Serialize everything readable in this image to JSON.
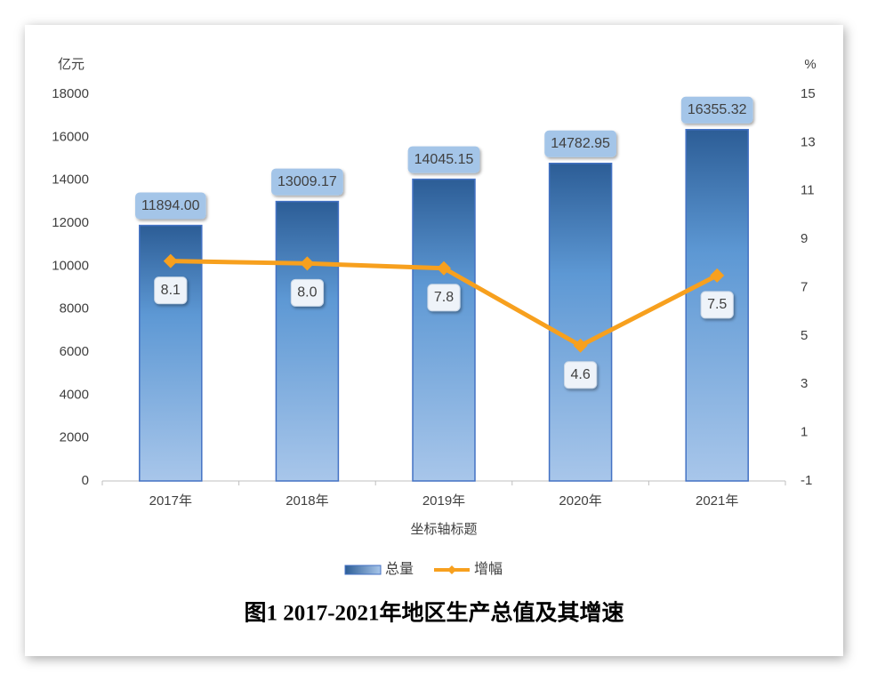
{
  "chart_data": {
    "type": "combo",
    "title": "图1 2017-2021年地区生产总值及其增速",
    "y_unit": "亿元",
    "y2_unit": "%",
    "x_label": "坐标轴标题",
    "categories": [
      "2017年",
      "2018年",
      "2019年",
      "2020年",
      "2021年"
    ],
    "series": [
      {
        "name": "总量",
        "type": "bar",
        "color": "#4472c4",
        "axis": "y",
        "values": [
          11894.0,
          13009.17,
          14045.15,
          14782.95,
          16355.32
        ],
        "value_labels": [
          "11894.00",
          "13009.17",
          "14045.15",
          "14782.95",
          "16355.32"
        ]
      },
      {
        "name": "增幅",
        "type": "line",
        "color": "#f7a01e",
        "axis": "y2",
        "values": [
          8.1,
          8.0,
          7.8,
          4.6,
          7.5
        ],
        "value_labels": [
          "8.1",
          "8.0",
          "7.8",
          "4.6",
          "7.5"
        ]
      }
    ],
    "ylim": [
      0,
      18000
    ],
    "yticks": [
      0,
      2000,
      4000,
      6000,
      8000,
      10000,
      12000,
      14000,
      16000,
      18000
    ],
    "y2lim": [
      -1,
      15
    ],
    "y2ticks": [
      -1,
      1,
      3,
      5,
      7,
      9,
      11,
      13,
      15
    ],
    "legend": "bottom"
  }
}
